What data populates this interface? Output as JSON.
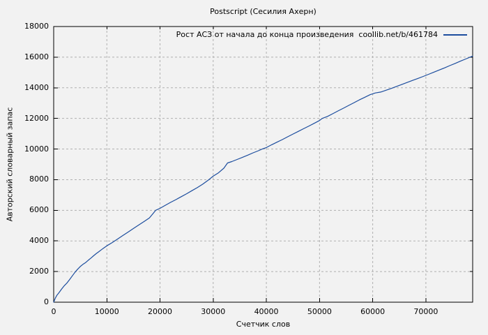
{
  "chart_data": {
    "type": "line",
    "title": "Postscript (Сесилия Ахерн)",
    "xlabel": "Счетчик слов",
    "ylabel": "Авторский словарный запас",
    "xlim": [
      0,
      78800
    ],
    "ylim": [
      0,
      18000
    ],
    "xticks": [
      0,
      10000,
      20000,
      30000,
      40000,
      50000,
      60000,
      70000
    ],
    "yticks": [
      0,
      2000,
      4000,
      6000,
      8000,
      10000,
      12000,
      14000,
      16000,
      18000
    ],
    "grid": true,
    "legend": {
      "label": "Рост АСЗ от начала до конца произведения  coollib.net/b/461784",
      "position": "top-right-inside"
    },
    "series": [
      {
        "name": "Рост АСЗ от начала до конца произведения  coollib.net/b/461784",
        "color": "#1c4d9e",
        "points": [
          [
            0,
            0
          ],
          [
            300,
            260
          ],
          [
            600,
            450
          ],
          [
            1000,
            620
          ],
          [
            1500,
            860
          ],
          [
            2000,
            1080
          ],
          [
            2500,
            1260
          ],
          [
            3000,
            1480
          ],
          [
            3500,
            1720
          ],
          [
            4000,
            1950
          ],
          [
            4500,
            2150
          ],
          [
            5000,
            2330
          ],
          [
            5500,
            2470
          ],
          [
            6000,
            2590
          ],
          [
            6500,
            2740
          ],
          [
            7000,
            2880
          ],
          [
            7500,
            3030
          ],
          [
            8000,
            3170
          ],
          [
            8500,
            3300
          ],
          [
            9000,
            3430
          ],
          [
            9500,
            3560
          ],
          [
            10000,
            3680
          ],
          [
            11000,
            3890
          ],
          [
            12000,
            4120
          ],
          [
            13000,
            4350
          ],
          [
            14000,
            4580
          ],
          [
            15000,
            4810
          ],
          [
            16000,
            5040
          ],
          [
            17000,
            5270
          ],
          [
            18000,
            5500
          ],
          [
            18600,
            5750
          ],
          [
            19200,
            6000
          ],
          [
            20000,
            6130
          ],
          [
            21000,
            6330
          ],
          [
            22000,
            6520
          ],
          [
            23000,
            6700
          ],
          [
            24000,
            6890
          ],
          [
            25000,
            7080
          ],
          [
            26000,
            7280
          ],
          [
            27000,
            7480
          ],
          [
            28000,
            7700
          ],
          [
            29000,
            7950
          ],
          [
            30000,
            8230
          ],
          [
            31000,
            8450
          ],
          [
            32000,
            8750
          ],
          [
            32700,
            9090
          ],
          [
            33500,
            9180
          ],
          [
            34500,
            9320
          ],
          [
            35500,
            9460
          ],
          [
            36500,
            9600
          ],
          [
            37500,
            9750
          ],
          [
            38500,
            9890
          ],
          [
            39200,
            10000
          ],
          [
            40000,
            10100
          ],
          [
            41000,
            10280
          ],
          [
            42000,
            10450
          ],
          [
            43000,
            10620
          ],
          [
            44000,
            10800
          ],
          [
            45000,
            10980
          ],
          [
            46000,
            11150
          ],
          [
            47000,
            11330
          ],
          [
            48000,
            11500
          ],
          [
            49000,
            11680
          ],
          [
            50000,
            11860
          ],
          [
            50500,
            12000
          ],
          [
            51500,
            12130
          ],
          [
            52500,
            12310
          ],
          [
            53500,
            12490
          ],
          [
            54500,
            12670
          ],
          [
            55500,
            12850
          ],
          [
            56500,
            13030
          ],
          [
            57500,
            13210
          ],
          [
            58500,
            13380
          ],
          [
            59500,
            13550
          ],
          [
            60500,
            13660
          ],
          [
            61500,
            13720
          ],
          [
            62500,
            13840
          ],
          [
            63500,
            13960
          ],
          [
            64500,
            14090
          ],
          [
            65500,
            14220
          ],
          [
            66500,
            14350
          ],
          [
            67500,
            14480
          ],
          [
            68500,
            14610
          ],
          [
            69500,
            14740
          ],
          [
            70500,
            14880
          ],
          [
            71500,
            15020
          ],
          [
            72500,
            15160
          ],
          [
            73500,
            15300
          ],
          [
            74500,
            15450
          ],
          [
            75500,
            15590
          ],
          [
            76500,
            15740
          ],
          [
            77500,
            15880
          ],
          [
            78300,
            16000
          ],
          [
            78800,
            16070
          ]
        ]
      }
    ],
    "style": {
      "background": "#f2f2f2",
      "grid_color": "#b0b0b0",
      "axis_color": "#000000"
    }
  }
}
